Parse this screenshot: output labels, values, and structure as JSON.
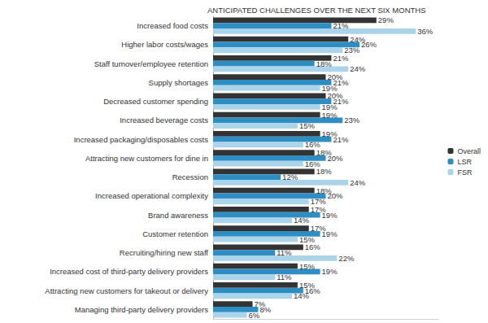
{
  "chart_data": {
    "type": "bar",
    "title": "ANTICIPATED CHALLENGES OVER THE NEXT SIX MONTHS",
    "orientation": "horizontal",
    "data_labels": true,
    "tick_labels": "y",
    "grid": false,
    "legend": "right",
    "xlim": [
      0,
      40
    ],
    "categories": [
      "Increased food costs",
      "Higher labor costs/wages",
      "Staff turnover/employee retention",
      "Supply shortages",
      "Decreased customer spending",
      "Increased beverage costs",
      "Increased packaging/disposables costs",
      "Attracting new customers for dine in",
      "Recession",
      "Increased operational complexity",
      "Brand awareness",
      "Customer retention",
      "Recruiting/hiring new staff",
      "Increased cost of third-party delivery providers",
      "Attracting new customers for takeout or delivery",
      "Managing third-party delivery providers"
    ],
    "series": [
      {
        "name": "Overall",
        "color": "#333333",
        "values": [
          29,
          24,
          21,
          20,
          20,
          19,
          19,
          18,
          18,
          18,
          17,
          17,
          16,
          15,
          15,
          7
        ],
        "value_labels": [
          "29%",
          "24%",
          "21%",
          "20%",
          "20%",
          "19%",
          "19%",
          "18%",
          "18%",
          "18%",
          "17%",
          "17%",
          "16%",
          "15%",
          "15%",
          "7%"
        ]
      },
      {
        "name": "LSR",
        "color": "#2e8ec4",
        "values": [
          21,
          26,
          18,
          21,
          21,
          23,
          21,
          20,
          12,
          20,
          19,
          19,
          11,
          19,
          16,
          8
        ],
        "value_labels": [
          "21%",
          "26%",
          "18%",
          "21%",
          "21%",
          "23%",
          "21%",
          "20%",
          "12%",
          "20%",
          "19%",
          "19%",
          "11%",
          "19%",
          "16%",
          "8%"
        ]
      },
      {
        "name": "FSR",
        "color": "#a9d4ea",
        "values": [
          36,
          23,
          24,
          19,
          19,
          15,
          16,
          16,
          24,
          17,
          14,
          15,
          22,
          11,
          14,
          6
        ],
        "value_labels": [
          "36%",
          "23%",
          "24%",
          "19%",
          "19%",
          "15%",
          "16%",
          "16%",
          "24%",
          "17%",
          "14%",
          "15%",
          "22%",
          "11%",
          "14%",
          "6%"
        ]
      }
    ]
  }
}
